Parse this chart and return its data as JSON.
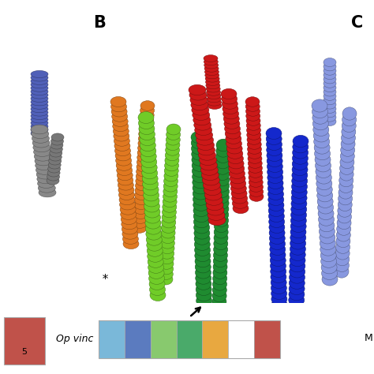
{
  "figure_bg": "#ffffff",
  "title_B": "B",
  "title_C": "C",
  "label_5": "5",
  "label_op_vinc": "Op vinc",
  "label_M": "M",
  "red_box_color": "#c0524a",
  "colorbar_segments": [
    "#7ab8d9",
    "#5b7bbf",
    "#88c96e",
    "#4aaa6a",
    "#e8a840",
    "#ffffff",
    "#c0524a"
  ],
  "star_label": "*",
  "arrow_label": "→",
  "colors": {
    "orange": "#e07820",
    "lime": "#70cc28",
    "dark_green": "#1f8b30",
    "red": "#cc1818",
    "blue_dark": "#1428cc",
    "periwinkle": "#8898e0",
    "gray": "#888888",
    "blue_left": "#4858b8"
  }
}
